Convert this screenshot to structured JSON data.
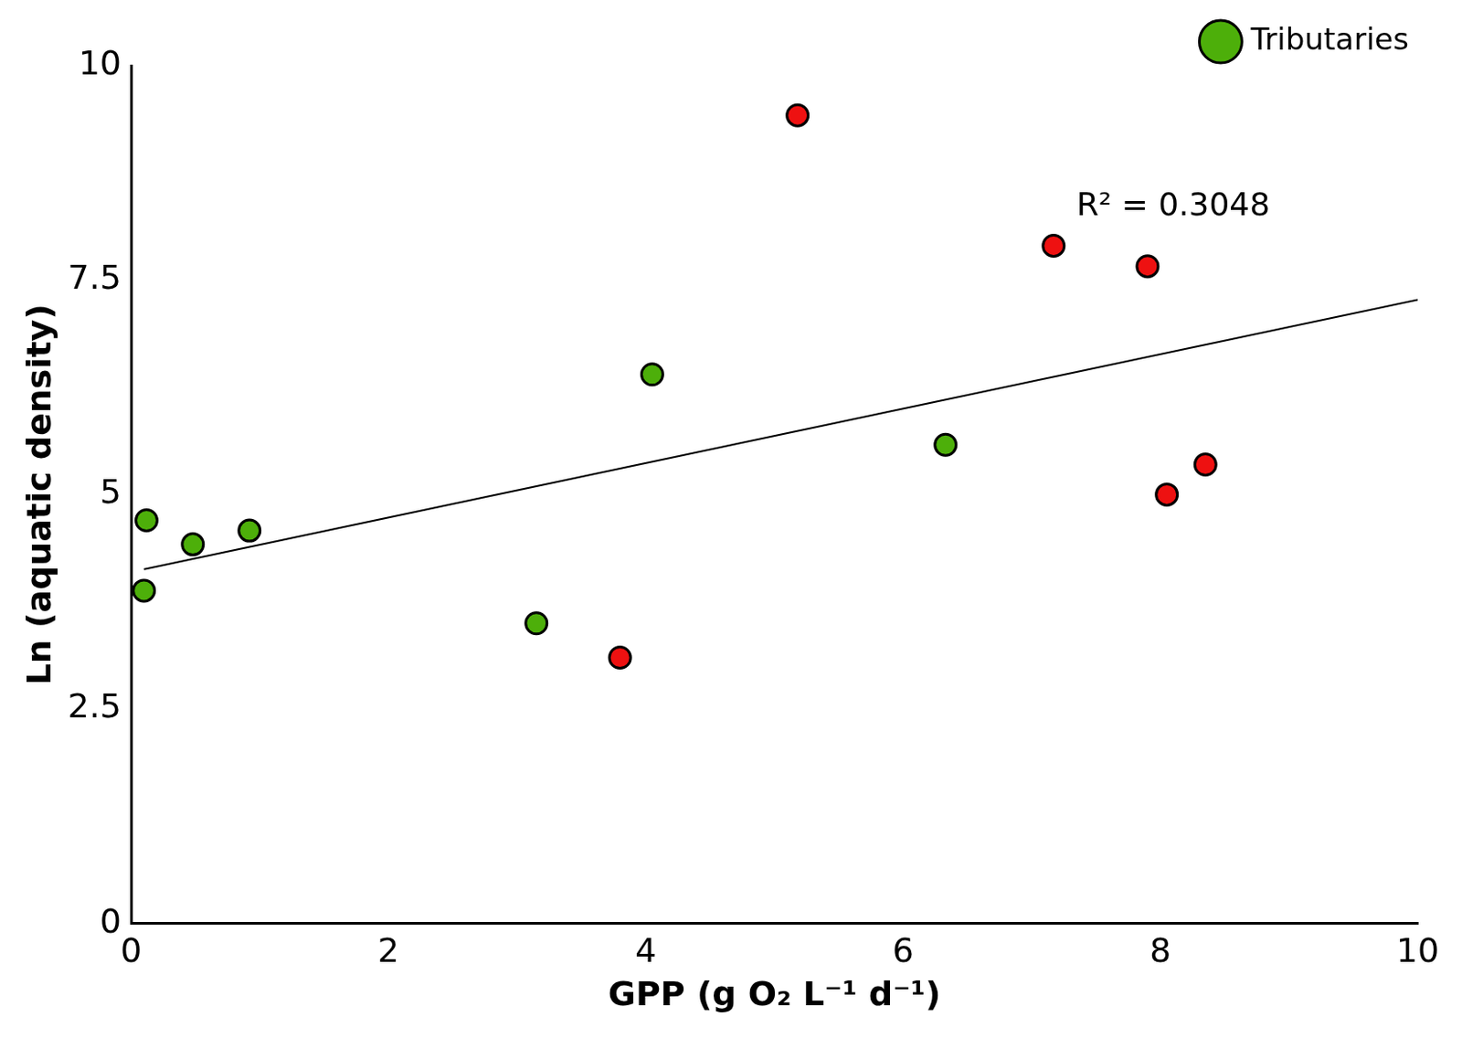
{
  "chart_data": {
    "type": "scatter",
    "x_label": "GPP (g O₂ L⁻¹ d⁻¹)",
    "y_label": "Ln (aquatic density)",
    "xlim": [
      0,
      10
    ],
    "xticks": [
      0,
      2,
      4,
      6,
      8,
      10
    ],
    "ylim": [
      0,
      10
    ],
    "yticks": [
      0,
      2.5,
      5,
      7.5,
      10
    ],
    "grid": false,
    "legend": "top-right",
    "series": [
      {
        "name": "Tributaries",
        "color": "#4daf0a",
        "marker": "circle",
        "x": [
          0.12,
          0.48,
          0.92,
          0.1,
          3.15,
          4.05,
          6.33
        ],
        "values": [
          4.7,
          4.42,
          4.58,
          3.88,
          3.5,
          6.4,
          5.58
        ]
      },
      {
        "color": "#ee1111",
        "marker": "circle",
        "x": [
          5.18,
          7.17,
          7.9,
          3.8,
          8.05,
          8.35
        ],
        "values": [
          9.42,
          7.9,
          7.66,
          3.1,
          5.0,
          5.35
        ]
      },
      {
        "type": "line",
        "color": "#000000",
        "line_style": "solid",
        "x": [
          0.1,
          10
        ],
        "values": [
          4.13,
          7.27
        ]
      }
    ],
    "annotations": [
      {
        "text": "R² = 0.3048",
        "x": 8.1,
        "y": 8.35
      }
    ]
  }
}
